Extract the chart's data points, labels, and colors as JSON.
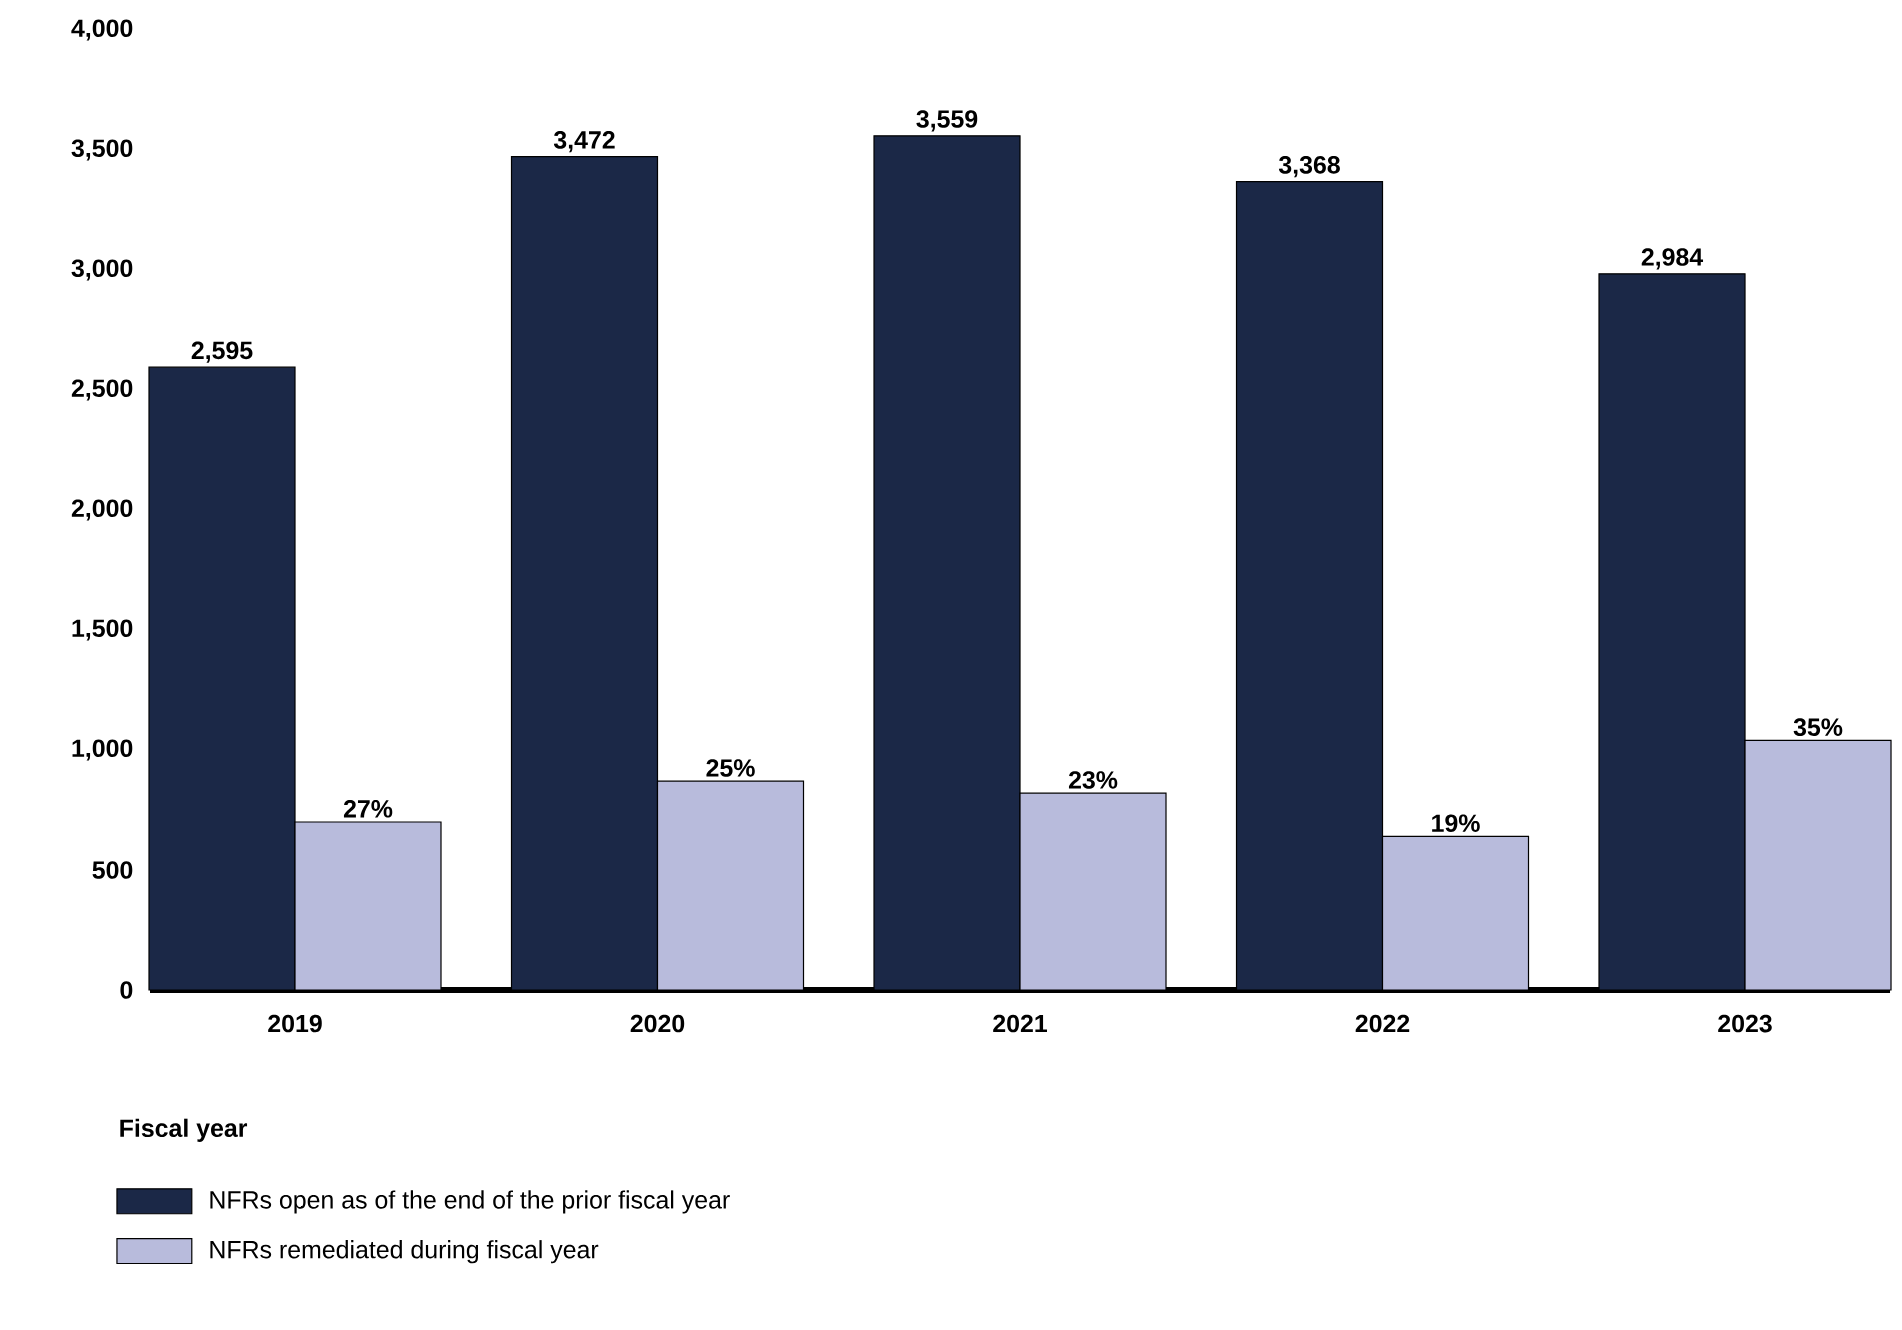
{
  "chart_data": {
    "type": "bar",
    "xlabel": "Fiscal year",
    "categories": [
      "2019",
      "2020",
      "2021",
      "2022",
      "2023"
    ],
    "series": [
      {
        "name": "NFRs open as of the end of the prior fiscal year",
        "color": "#1b2847",
        "values": [
          2595,
          3472,
          3559,
          3368,
          2984
        ],
        "value_labels": [
          "2,595",
          "3,472",
          "3,559",
          "3,368",
          "2,984"
        ]
      },
      {
        "name": "NFRs remediated during fiscal year",
        "color": "#b8bbdc",
        "values": [
          700,
          870,
          820,
          640,
          1040
        ]
      }
    ],
    "annotations": [
      {
        "text": "27%",
        "x": "2019",
        "y": 700
      },
      {
        "text": "25%",
        "x": "2020",
        "y": 870
      },
      {
        "text": "23%",
        "x": "2021",
        "y": 820
      },
      {
        "text": "19%",
        "x": "2022",
        "y": 640
      },
      {
        "text": "35%",
        "x": "2023",
        "y": 1040
      }
    ],
    "ylim": [
      0,
      4000
    ],
    "yticks": [
      {
        "value": 0,
        "label": "0"
      },
      {
        "value": 500,
        "label": "500"
      },
      {
        "value": 1000,
        "label": "1,000"
      },
      {
        "value": 1500,
        "label": "1,500"
      },
      {
        "value": 2000,
        "label": "2,000"
      },
      {
        "value": 2500,
        "label": "2,500"
      },
      {
        "value": 3000,
        "label": "3,000"
      },
      {
        "value": 3500,
        "label": "3,500"
      },
      {
        "value": 4000,
        "label": "4,000"
      }
    ],
    "legend": "bottom"
  }
}
